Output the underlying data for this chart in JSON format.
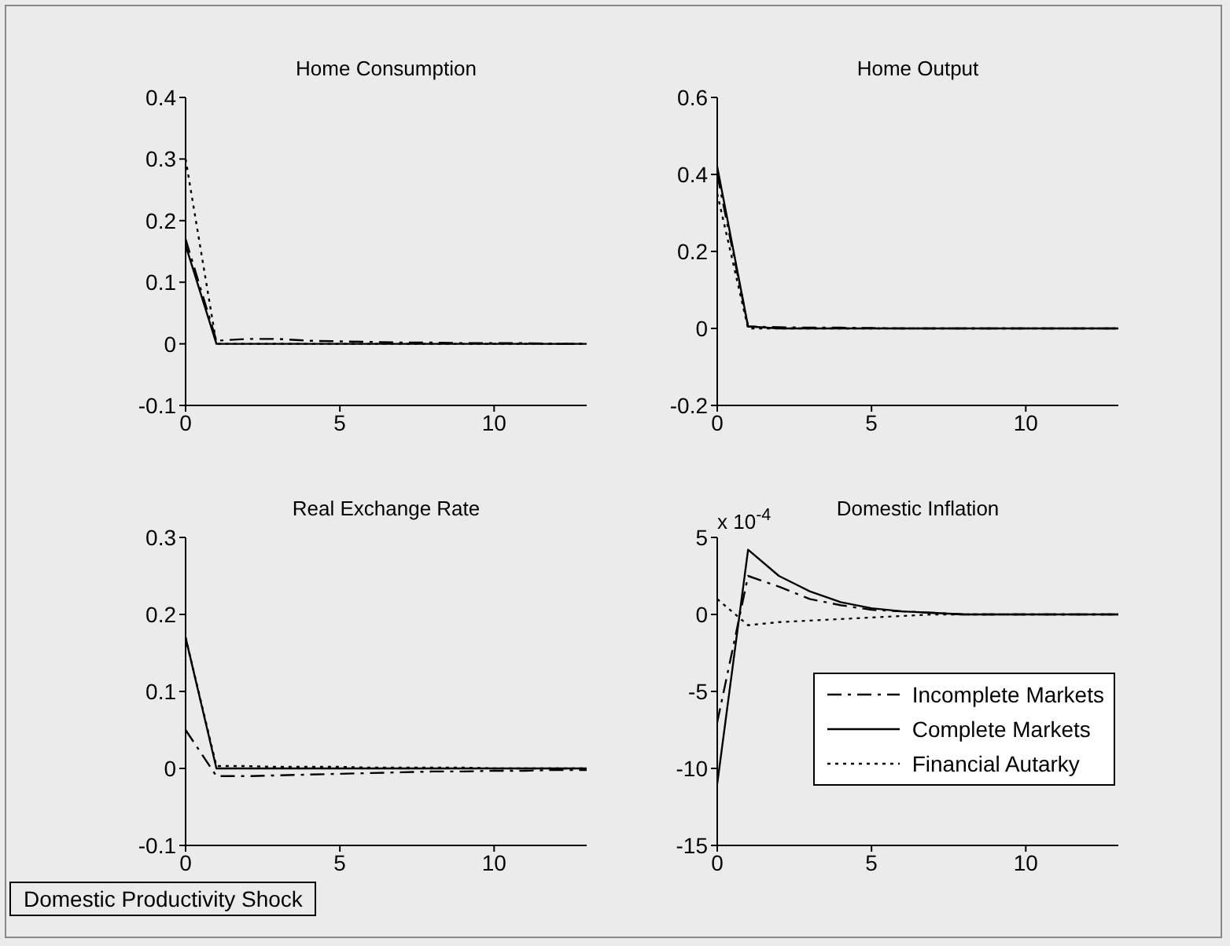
{
  "chart_data": [
    {
      "type": "line",
      "title": "Home Consumption",
      "x": [
        0,
        1,
        2,
        3,
        4,
        5,
        6,
        7,
        8,
        9,
        10,
        11,
        12,
        13
      ],
      "xlim": [
        0,
        13
      ],
      "xticks": [
        0,
        5,
        10
      ],
      "ylim": [
        -0.1,
        0.4
      ],
      "yticks": [
        -0.1,
        0,
        0.1,
        0.2,
        0.3,
        0.4
      ],
      "grid": false,
      "legend": false,
      "marker": "none",
      "series": [
        {
          "color": "#000000",
          "line_style": "dashed",
          "values": [
            0.17,
            0.005,
            0.008,
            0.008,
            0.005,
            0.004,
            0.003,
            0.002,
            0.002,
            0.001,
            0.001,
            0.001,
            0,
            0
          ]
        },
        {
          "color": "#000000",
          "line_style": "solid",
          "values": [
            0.16,
            0,
            0,
            0,
            0,
            0,
            0,
            0,
            0,
            0,
            0,
            0,
            0,
            0
          ]
        },
        {
          "color": "#000000",
          "line_style": "dotted",
          "values": [
            0.3,
            0,
            0,
            0,
            0,
            0,
            0,
            0,
            0,
            0,
            0,
            0,
            0,
            0
          ]
        }
      ]
    },
    {
      "type": "line",
      "title": "Home Output",
      "x": [
        0,
        1,
        2,
        3,
        4,
        5,
        6,
        7,
        8,
        9,
        10,
        11,
        12,
        13
      ],
      "xlim": [
        0,
        13
      ],
      "xticks": [
        0,
        5,
        10
      ],
      "ylim": [
        -0.2,
        0.6
      ],
      "yticks": [
        -0.2,
        0,
        0.2,
        0.4,
        0.6
      ],
      "grid": false,
      "legend": false,
      "marker": "none",
      "series": [
        {
          "color": "#000000",
          "line_style": "dashed",
          "values": [
            0.4,
            0.005,
            0.003,
            0.002,
            0.002,
            0.001,
            0,
            0,
            0,
            0,
            0,
            0,
            0,
            0
          ]
        },
        {
          "color": "#000000",
          "line_style": "solid",
          "values": [
            0.42,
            0.005,
            0,
            0,
            0,
            0,
            0,
            0,
            0,
            0,
            0,
            0,
            0,
            0
          ]
        },
        {
          "color": "#000000",
          "line_style": "dotted",
          "values": [
            0.35,
            0,
            0,
            0,
            0,
            0,
            0,
            0,
            0,
            0,
            0,
            0,
            0,
            0
          ]
        }
      ]
    },
    {
      "type": "line",
      "title": "Real Exchange Rate",
      "x": [
        0,
        1,
        2,
        3,
        4,
        5,
        6,
        7,
        8,
        9,
        10,
        11,
        12,
        13
      ],
      "xlim": [
        0,
        13
      ],
      "xticks": [
        0,
        5,
        10
      ],
      "ylim": [
        -0.1,
        0.3
      ],
      "yticks": [
        -0.1,
        0,
        0.1,
        0.2,
        0.3
      ],
      "grid": false,
      "legend": false,
      "marker": "none",
      "annotations": [
        "Domestic Productivity Shock"
      ],
      "series": [
        {
          "color": "#000000",
          "line_style": "dashed",
          "values": [
            0.05,
            -0.01,
            -0.01,
            -0.009,
            -0.008,
            -0.007,
            -0.006,
            -0.005,
            -0.004,
            -0.004,
            -0.003,
            -0.003,
            -0.002,
            -0.002
          ]
        },
        {
          "color": "#000000",
          "line_style": "solid",
          "values": [
            0.17,
            0,
            0,
            0,
            0,
            0,
            0,
            0,
            0,
            0,
            0,
            0,
            0,
            0
          ]
        },
        {
          "color": "#000000",
          "line_style": "dotted",
          "values": [
            0.17,
            0.003,
            0.003,
            0.002,
            0.002,
            0.002,
            0.001,
            0.001,
            0.001,
            0.001,
            0,
            0,
            0,
            0
          ]
        }
      ]
    },
    {
      "type": "line",
      "title": "Domestic Inflation",
      "x": [
        0,
        1,
        2,
        3,
        4,
        5,
        6,
        7,
        8,
        9,
        10,
        11,
        12,
        13
      ],
      "xlim": [
        0,
        13
      ],
      "xticks": [
        0,
        5,
        10
      ],
      "ylim": [
        -15,
        5
      ],
      "yticks": [
        -15,
        -10,
        -5,
        0,
        5
      ],
      "grid": false,
      "legend": "bottom right",
      "marker": "none",
      "annotations": [
        "x 10$^{-4}$"
      ],
      "series": [
        {
          "name": "Incomplete Markets",
          "color": "#000000",
          "line_style": "dashed",
          "values": [
            -7,
            2.5,
            1.8,
            1.0,
            0.6,
            0.3,
            0.2,
            0.1,
            0,
            0,
            0,
            0,
            0,
            0
          ]
        },
        {
          "name": "Complete Markets",
          "color": "#000000",
          "line_style": "solid",
          "values": [
            -11,
            4.2,
            2.5,
            1.5,
            0.8,
            0.4,
            0.2,
            0.1,
            0,
            0,
            0,
            0,
            0,
            0
          ]
        },
        {
          "name": "Financial Autarky",
          "color": "#000000",
          "line_style": "dotted",
          "values": [
            1,
            -0.7,
            -0.5,
            -0.4,
            -0.3,
            -0.2,
            -0.1,
            0,
            0,
            0,
            0,
            0,
            0,
            0
          ]
        }
      ]
    }
  ]
}
